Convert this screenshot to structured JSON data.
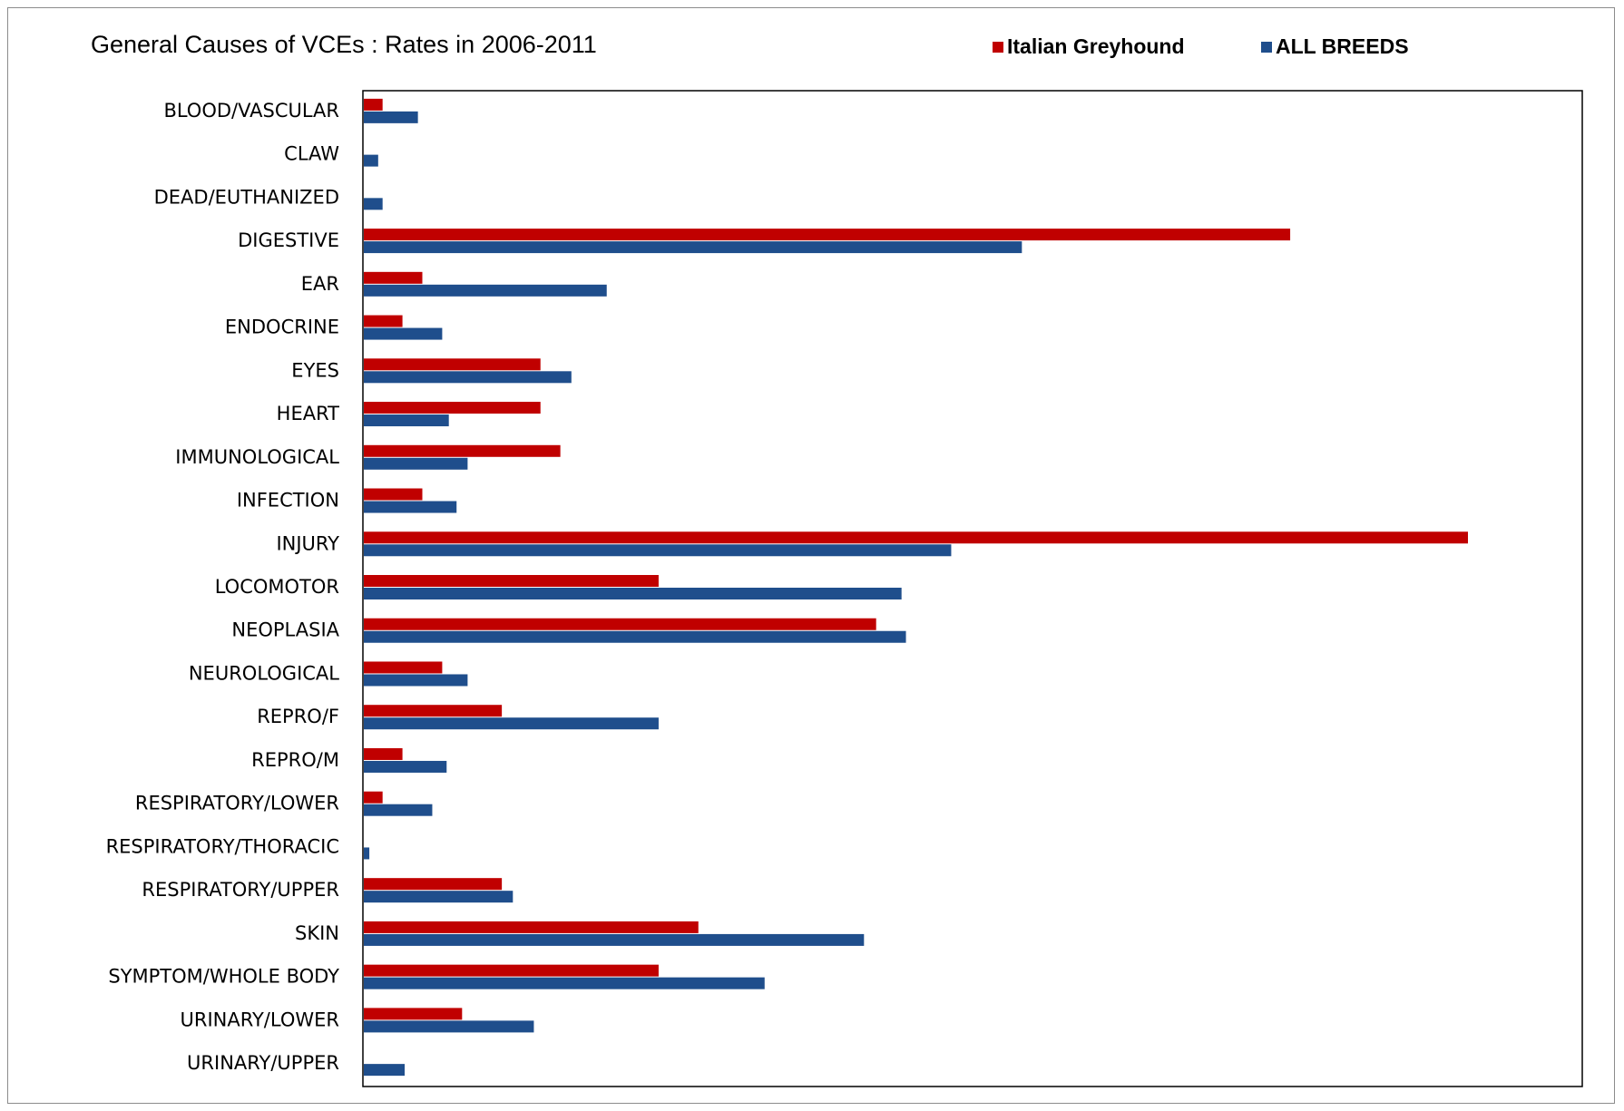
{
  "chart_data": {
    "type": "bar",
    "orientation": "horizontal",
    "title": "General Causes of VCEs : Rates in 2006-2011",
    "xlabel": "",
    "ylabel": "",
    "xlim": [
      0,
      100
    ],
    "grid": false,
    "legend_position": "top-right",
    "categories": [
      "BLOOD/VASCULAR",
      "CLAW",
      "DEAD/EUTHANIZED",
      "DIGESTIVE",
      "EAR",
      "ENDOCRINE",
      "EYES",
      "HEART",
      "IMMUNOLOGICAL",
      "INFECTION",
      "INJURY",
      "LOCOMOTOR",
      "NEOPLASIA",
      "NEUROLOGICAL",
      "REPRO/F",
      "REPRO/M",
      "RESPIRATORY/LOWER",
      "RESPIRATORY/THORACIC",
      "RESPIRATORY/UPPER",
      "SKIN",
      "SYMPTOM/WHOLE BODY",
      "URINARY/LOWER",
      "URINARY/UPPER"
    ],
    "series": [
      {
        "name": "Italian Greyhound",
        "color": "#c00000",
        "values": [
          1.7,
          0,
          0,
          83.9,
          5.3,
          3.5,
          16.0,
          16.0,
          17.8,
          5.3,
          100,
          26.7,
          46.4,
          7.1,
          12.5,
          3.5,
          1.7,
          0,
          12.5,
          30.3,
          26.7,
          8.9,
          0
        ]
      },
      {
        "name": "ALL BREEDS",
        "color": "#1f4e8c",
        "values": [
          4.9,
          1.3,
          1.7,
          59.6,
          22.0,
          7.1,
          18.8,
          7.7,
          9.4,
          8.4,
          53.2,
          48.7,
          49.1,
          9.4,
          26.7,
          7.5,
          6.2,
          0.5,
          13.5,
          45.3,
          36.3,
          15.4,
          3.7
        ]
      }
    ]
  }
}
